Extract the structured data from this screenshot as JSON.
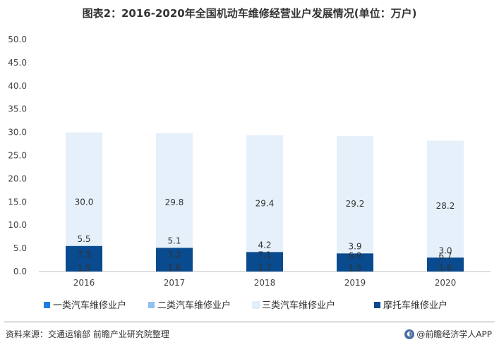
{
  "title": "图表2：2016-2020年全国机动车维修经营业户发展情况(单位：万户)",
  "source": "资料来源：交通运输部 前瞻产业研究院整理",
  "brand": "@前瞻经济学人APP",
  "chart_data": {
    "type": "bar",
    "stacked": true,
    "categories": [
      "2016",
      "2017",
      "2018",
      "2019",
      "2020"
    ],
    "series": [
      {
        "name": "一类汽车维修业户",
        "color": "#1f7fe0",
        "values": [
          1.5,
          1.6,
          1.7,
          1.5,
          1.6
        ]
      },
      {
        "name": "二类汽车维修业户",
        "color": "#8ec0f2",
        "values": [
          7.3,
          7.2,
          7.1,
          6.9,
          6.7
        ]
      },
      {
        "name": "三类汽车维修业户",
        "color": "#e6f0fb",
        "values": [
          30.0,
          29.8,
          29.4,
          29.2,
          28.2
        ]
      },
      {
        "name": "摩托车维修业户",
        "color": "#0a4a8e",
        "values": [
          5.5,
          5.1,
          4.2,
          3.9,
          3.0
        ]
      }
    ],
    "ylim": [
      0,
      50
    ],
    "yticks": [
      0,
      5,
      10,
      15,
      20,
      25,
      30,
      35,
      40,
      45,
      50
    ],
    "legend_position": "bottom",
    "grid": false
  }
}
